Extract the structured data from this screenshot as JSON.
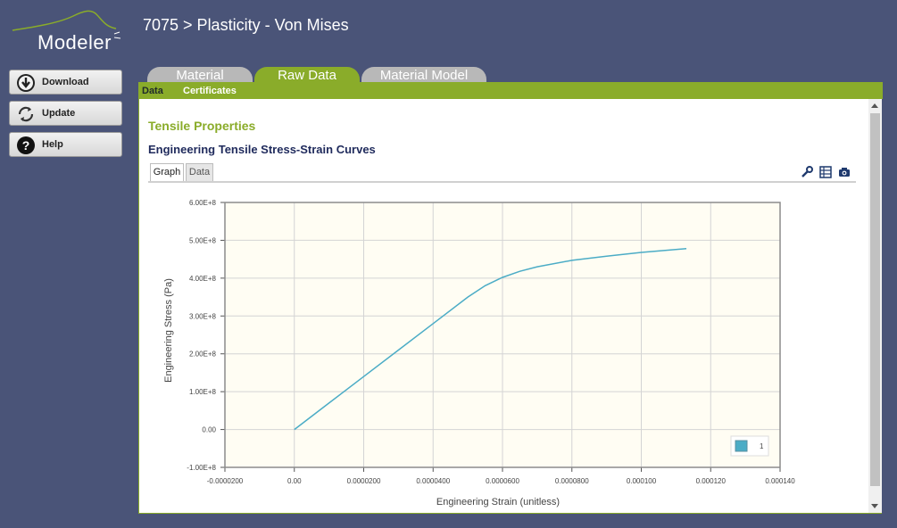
{
  "app": {
    "logo_text": "Modeler",
    "page_title": "7075 > Plasticity - Von Mises"
  },
  "sidebar": {
    "download_label": "Download",
    "update_label": "Update",
    "help_label": "Help"
  },
  "tabs": [
    {
      "label": "Material",
      "active": false
    },
    {
      "label": "Raw Data",
      "active": true
    },
    {
      "label": "Material Model",
      "active": false
    }
  ],
  "subtabs": [
    {
      "label": "Data",
      "active": true
    },
    {
      "label": "Certificates",
      "active": false
    }
  ],
  "content": {
    "section_title": "Tensile Properties",
    "chart_title": "Engineering Tensile Stress-Strain Curves",
    "view_tabs": [
      {
        "label": "Graph",
        "active": true
      },
      {
        "label": "Data",
        "active": false
      }
    ],
    "toolbar_icons": [
      "wrench-icon",
      "table-icon",
      "camera-icon"
    ]
  },
  "colors": {
    "background": "#4a5478",
    "accent_green": "#8aac2a",
    "title_navy": "#1f2a5c",
    "series_color": "#4bacc6",
    "plot_bg": "#fffdf3"
  },
  "chart_data": {
    "type": "line",
    "title": "",
    "xlabel": "Engineering Strain (unitless)",
    "ylabel": "Engineering Stress (Pa)",
    "xlim": [
      -2e-05,
      0.00014
    ],
    "ylim": [
      -100000000,
      600000000
    ],
    "x_ticks": [
      "-0.0000200",
      "0.00",
      "0.0000200",
      "0.0000400",
      "0.0000600",
      "0.0000800",
      "0.000100",
      "0.000120",
      "0.000140"
    ],
    "y_ticks": [
      "-1.00E+8",
      "0.00",
      "1.00E+8",
      "2.00E+8",
      "3.00E+8",
      "4.00E+8",
      "5.00E+8",
      "6.00E+8"
    ],
    "grid": true,
    "legend_position": "bottom-right",
    "series": [
      {
        "name": "1",
        "x": [
          0,
          1e-05,
          2e-05,
          3e-05,
          4e-05,
          5e-05,
          5.5e-05,
          6e-05,
          6.5e-05,
          7e-05,
          8e-05,
          9e-05,
          0.0001,
          0.000113
        ],
        "y": [
          0,
          70000000,
          140000000,
          210000000,
          280000000,
          350000000,
          380000000,
          402000000,
          418000000,
          430000000,
          447000000,
          458000000,
          468000000,
          478000000
        ]
      }
    ]
  }
}
